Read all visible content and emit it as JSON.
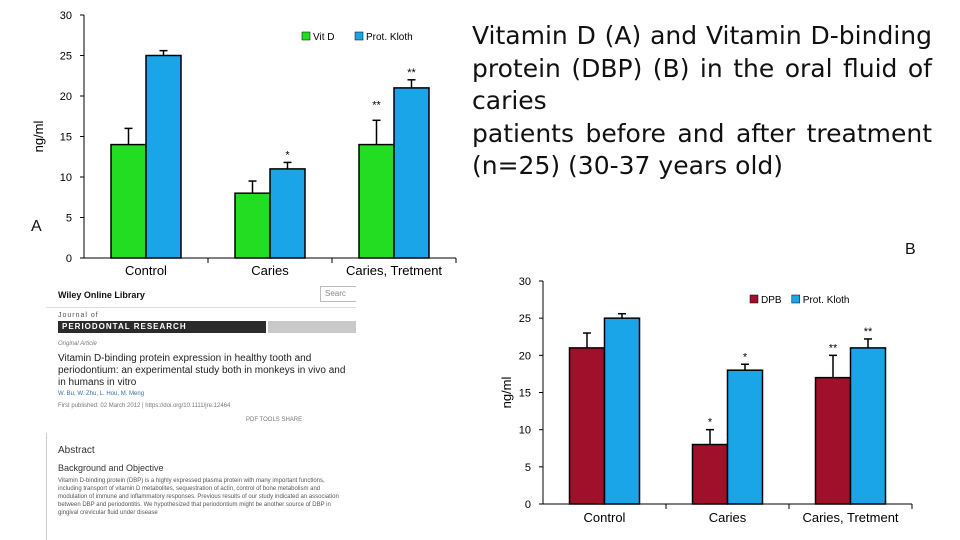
{
  "title_text": "Vitamin D (A) and Vitamin D-binding protein (DBP) (B) in the oral fluid of caries patients before and after treatment (n=25) (30-37 years old)",
  "title_lines": [
    "Vitamin D (A) and Vitamin D-binding",
    "protein (DBP) (B) in the oral fluid of caries",
    "patients before and after treatment",
    "(n=25) (30-37 years old)"
  ],
  "panel_a_label": "A",
  "panel_b_label": "B",
  "colors": {
    "green": "#22dd22",
    "blue": "#1aa5e8",
    "darkred": "#a0102a",
    "axis": "#000000"
  },
  "chart_data": [
    {
      "type": "bar",
      "panel": "A",
      "categories": [
        "Control",
        "Caries",
        "Caries, Tretment"
      ],
      "series": [
        {
          "name": "Vit D",
          "values": [
            14,
            8,
            14
          ],
          "errors": [
            2,
            1.5,
            3
          ],
          "color": "#22dd22",
          "markers": [
            "",
            "",
            ""
          ]
        },
        {
          "name": "Prot. Kloth",
          "values": [
            25,
            11,
            21
          ],
          "errors": [
            0.6,
            0.8,
            1
          ],
          "color": "#1aa5e8",
          "markers": [
            "",
            "*",
            "**"
          ]
        }
      ],
      "extra_markers": [
        {
          "category": 2,
          "series": 0,
          "text": "**"
        }
      ],
      "ylabel": "ng/ml",
      "ylim": [
        0,
        30
      ],
      "yticks": [
        0,
        5,
        10,
        15,
        20,
        25,
        30
      ],
      "legend": "top"
    },
    {
      "type": "bar",
      "panel": "B",
      "categories": [
        "Control",
        "Caries",
        "Caries, Tretment"
      ],
      "series": [
        {
          "name": "DPB",
          "values": [
            21,
            8,
            17
          ],
          "errors": [
            2,
            2,
            3
          ],
          "color": "#a0102a",
          "markers": [
            "",
            "*",
            "**"
          ]
        },
        {
          "name": "Prot. Kloth",
          "values": [
            25,
            18,
            21
          ],
          "errors": [
            0.6,
            0.8,
            1.2
          ],
          "color": "#1aa5e8",
          "markers": [
            "",
            "*",
            "**"
          ]
        }
      ],
      "ylabel": "ng/ml",
      "ylim": [
        0,
        30
      ],
      "yticks": [
        0,
        5,
        10,
        15,
        20,
        25,
        30
      ],
      "legend": "top"
    }
  ],
  "snapshot": {
    "library": "Wiley Online Library",
    "search_placeholder": "Searc",
    "journal_of": "Journal of",
    "journal_name": "PERIODONTAL RESEARCH",
    "article_type": "Original Article",
    "article_title": "Vitamin D-binding protein expression in healthy tooth and periodontium: an experimental study both in monkeys in vivo and in humans in vitro",
    "authors": "W. Bu, W. Zhu, L. Hou, M. Meng",
    "pub_line": "First published: 02 March 2012 | https://doi.org/10.1111/jre.12464",
    "actions": "PDF   TOOLS   SHARE",
    "abstract_heading": "Abstract",
    "abstract_subheading": "Background and Objective",
    "abstract_text": "Vitamin D-binding protein (DBP) is a highly expressed plasma protein with many important functions, including transport of vitamin D metabolites, sequestration of actin, control of bone metabolism and modulation of immune and inflammatory responses. Previous results of our study indicated an association between DBP and periodontitis. We hypothesized that periodontium might be another source of DBP in gingival crevicular fluid under disease"
  }
}
